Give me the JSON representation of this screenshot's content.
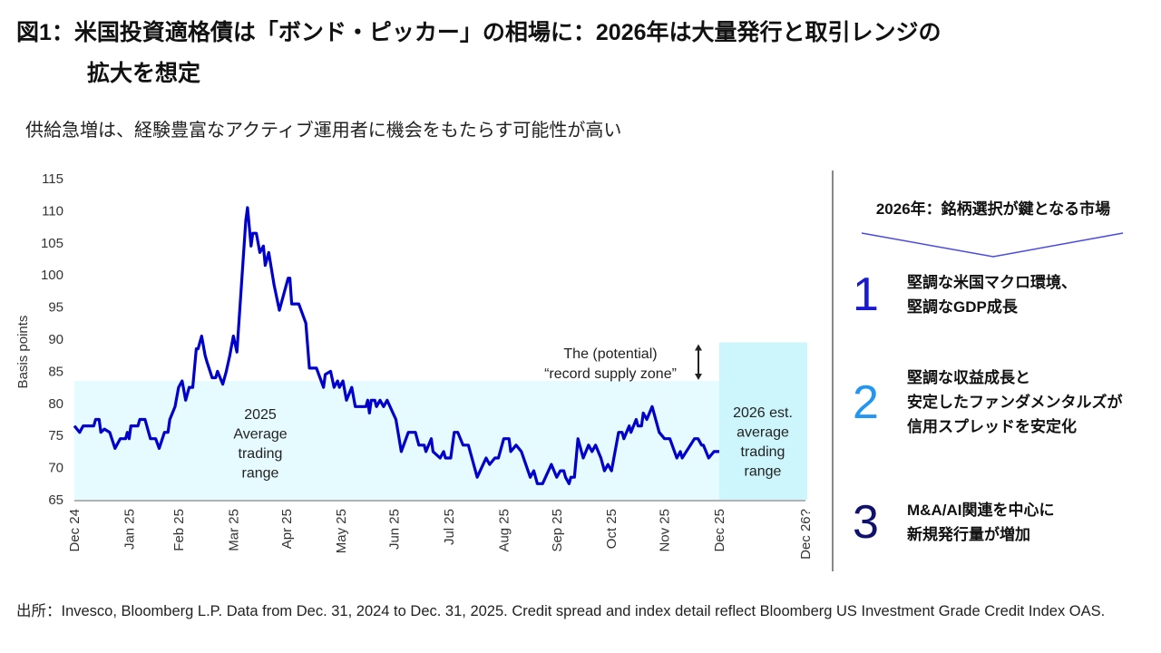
{
  "header": {
    "title_line1": "図1：米国投資適格債は「ボンド・ピッカー」の相場に：2026年は大量発行と取引レンジの",
    "title_line2": "拡大を想定",
    "subtitle": "供給急増は、経験豊富なアクティブ運用者に機会をもたらす可能性が高い"
  },
  "chart_data": {
    "type": "line",
    "ylabel": "Basis points",
    "ylim": [
      65,
      115
    ],
    "yticks": [
      65,
      70,
      75,
      80,
      85,
      90,
      95,
      100,
      105,
      110,
      115
    ],
    "xticks": [
      {
        "date": "2024-12-31",
        "label": "Dec 24"
      },
      {
        "date": "2025-01-31",
        "label": "Jan 25"
      },
      {
        "date": "2025-02-28",
        "label": "Feb 25"
      },
      {
        "date": "2025-03-31",
        "label": "Mar 25"
      },
      {
        "date": "2025-04-30",
        "label": "Apr 25"
      },
      {
        "date": "2025-05-31",
        "label": "May 25"
      },
      {
        "date": "2025-06-30",
        "label": "Jun 25"
      },
      {
        "date": "2025-07-31",
        "label": "Jul 25"
      },
      {
        "date": "2025-08-31",
        "label": "Aug 25"
      },
      {
        "date": "2025-09-30",
        "label": "Sep 25"
      },
      {
        "date": "2025-10-31",
        "label": "Oct 25"
      },
      {
        "date": "2025-11-30",
        "label": "Nov 25"
      },
      {
        "date": "2025-12-31",
        "label": "Dec 25"
      },
      {
        "date": "2026-12-31",
        "label": "Dec 26?"
      }
    ],
    "grid": false,
    "line_color": "#0000cc",
    "band_color_2025": "#e6fbff",
    "band_color_2026": "#ccf5fc",
    "bands": [
      {
        "from": "2024-12-31",
        "to": "2025-12-31",
        "low": 65,
        "high": 83.5,
        "label_lines": [
          "2025",
          "Average",
          "trading",
          "range"
        ]
      },
      {
        "from": "2025-12-31",
        "to": "2026-12-31",
        "low": 65,
        "high": 89.5,
        "label_lines": [
          "2026 est.",
          "average",
          "trading",
          "range"
        ]
      }
    ],
    "annotation": {
      "lines": [
        "The (potential)",
        "“record supply zone”"
      ],
      "from": 83.5,
      "to": 89.5
    },
    "series": [
      {
        "points": [
          [
            "2024-12-31",
            76.5
          ],
          [
            "2025-01-03",
            75.5
          ],
          [
            "2025-01-05",
            76.5
          ],
          [
            "2025-01-11",
            76.5
          ],
          [
            "2025-01-12",
            77.5
          ],
          [
            "2025-01-14",
            77.5
          ],
          [
            "2025-01-15",
            75.5
          ],
          [
            "2025-01-17",
            76
          ],
          [
            "2025-01-20",
            75.5
          ],
          [
            "2025-01-23",
            73
          ],
          [
            "2025-01-26",
            74.5
          ],
          [
            "2025-01-29",
            74.5
          ],
          [
            "2025-01-30",
            75.5
          ],
          [
            "2025-01-31",
            74.5
          ],
          [
            "2025-02-01",
            76.5
          ],
          [
            "2025-02-05",
            76.5
          ],
          [
            "2025-02-06",
            77.5
          ],
          [
            "2025-02-09",
            77.5
          ],
          [
            "2025-02-12",
            74.5
          ],
          [
            "2025-02-15",
            74.5
          ],
          [
            "2025-02-17",
            73
          ],
          [
            "2025-02-20",
            75.5
          ],
          [
            "2025-02-22",
            75.5
          ],
          [
            "2025-02-23",
            77.5
          ],
          [
            "2025-02-26",
            79.5
          ],
          [
            "2025-02-28",
            82.5
          ],
          [
            "2025-03-02",
            83.5
          ],
          [
            "2025-03-04",
            80.5
          ],
          [
            "2025-03-06",
            82.5
          ],
          [
            "2025-03-08",
            82.5
          ],
          [
            "2025-03-10",
            88.5
          ],
          [
            "2025-03-11",
            88.5
          ],
          [
            "2025-03-13",
            90.5
          ],
          [
            "2025-03-15",
            87.5
          ],
          [
            "2025-03-16",
            86.5
          ],
          [
            "2025-03-19",
            84
          ],
          [
            "2025-03-21",
            84
          ],
          [
            "2025-03-22",
            85
          ],
          [
            "2025-03-25",
            83
          ],
          [
            "2025-03-27",
            85
          ],
          [
            "2025-03-29",
            87.5
          ],
          [
            "2025-03-31",
            90.5
          ],
          [
            "2025-04-02",
            88
          ],
          [
            "2025-04-07",
            108.5
          ],
          [
            "2025-04-08",
            110.5
          ],
          [
            "2025-04-10",
            104.5
          ],
          [
            "2025-04-11",
            106.5
          ],
          [
            "2025-04-13",
            106.5
          ],
          [
            "2025-04-15",
            103.5
          ],
          [
            "2025-04-17",
            104.5
          ],
          [
            "2025-04-18",
            101.5
          ],
          [
            "2025-04-20",
            103.5
          ],
          [
            "2025-04-23",
            98.5
          ],
          [
            "2025-04-26",
            94.5
          ],
          [
            "2025-05-01",
            99.5
          ],
          [
            "2025-05-02",
            99.5
          ],
          [
            "2025-05-03",
            95.5
          ],
          [
            "2025-05-07",
            95.5
          ],
          [
            "2025-05-11",
            92.5
          ],
          [
            "2025-05-13",
            85.5
          ],
          [
            "2025-05-17",
            85.5
          ],
          [
            "2025-05-21",
            82.5
          ],
          [
            "2025-05-22",
            84.5
          ],
          [
            "2025-05-25",
            85
          ],
          [
            "2025-05-27",
            82.5
          ],
          [
            "2025-05-29",
            83.5
          ],
          [
            "2025-05-30",
            82.5
          ],
          [
            "2025-06-01",
            83.5
          ],
          [
            "2025-06-03",
            80.5
          ],
          [
            "2025-06-06",
            82.5
          ],
          [
            "2025-06-08",
            79.5
          ],
          [
            "2025-06-14",
            79.5
          ],
          [
            "2025-06-15",
            80.5
          ],
          [
            "2025-06-16",
            78.5
          ],
          [
            "2025-06-17",
            80.5
          ],
          [
            "2025-06-19",
            80.5
          ],
          [
            "2025-06-20",
            79.5
          ],
          [
            "2025-06-22",
            80.5
          ],
          [
            "2025-06-24",
            79.5
          ],
          [
            "2025-06-26",
            80.5
          ],
          [
            "2025-07-01",
            77.5
          ],
          [
            "2025-07-04",
            72.5
          ],
          [
            "2025-07-08",
            75.5
          ],
          [
            "2025-07-12",
            75.5
          ],
          [
            "2025-07-14",
            73.5
          ],
          [
            "2025-07-17",
            73.5
          ],
          [
            "2025-07-18",
            72.5
          ],
          [
            "2025-07-21",
            74.5
          ],
          [
            "2025-07-22",
            72.5
          ],
          [
            "2025-07-26",
            71.5
          ],
          [
            "2025-07-28",
            72.5
          ],
          [
            "2025-07-29",
            71.5
          ],
          [
            "2025-08-01",
            71.5
          ],
          [
            "2025-08-03",
            75.5
          ],
          [
            "2025-08-05",
            75.5
          ],
          [
            "2025-08-08",
            73.5
          ],
          [
            "2025-08-11",
            73.5
          ],
          [
            "2025-08-16",
            68.5
          ],
          [
            "2025-08-21",
            71.5
          ],
          [
            "2025-08-23",
            70.5
          ],
          [
            "2025-08-26",
            71.5
          ],
          [
            "2025-08-28",
            71.5
          ],
          [
            "2025-08-31",
            74.5
          ],
          [
            "2025-09-03",
            74.5
          ],
          [
            "2025-09-04",
            72.5
          ],
          [
            "2025-09-07",
            73.5
          ],
          [
            "2025-09-10",
            72.5
          ],
          [
            "2025-09-15",
            68.5
          ],
          [
            "2025-09-17",
            69.5
          ],
          [
            "2025-09-19",
            67.5
          ],
          [
            "2025-09-22",
            67.5
          ],
          [
            "2025-09-27",
            70.5
          ],
          [
            "2025-09-30",
            68.5
          ],
          [
            "2025-10-02",
            69.5
          ],
          [
            "2025-10-04",
            69.5
          ],
          [
            "2025-10-05",
            68.5
          ],
          [
            "2025-10-07",
            67.5
          ],
          [
            "2025-10-08",
            68.5
          ],
          [
            "2025-10-10",
            68.5
          ],
          [
            "2025-10-12",
            74.5
          ],
          [
            "2025-10-15",
            71.5
          ],
          [
            "2025-10-18",
            73.5
          ],
          [
            "2025-10-20",
            72.5
          ],
          [
            "2025-10-22",
            73.5
          ],
          [
            "2025-10-25",
            71.5
          ],
          [
            "2025-10-27",
            69.5
          ],
          [
            "2025-10-29",
            70.5
          ],
          [
            "2025-10-31",
            69.5
          ],
          [
            "2025-11-04",
            75.5
          ],
          [
            "2025-11-06",
            75.5
          ],
          [
            "2025-11-07",
            74.5
          ],
          [
            "2025-11-10",
            76.5
          ],
          [
            "2025-11-11",
            75.5
          ],
          [
            "2025-11-14",
            77.5
          ],
          [
            "2025-11-15",
            76.5
          ],
          [
            "2025-11-17",
            76.5
          ],
          [
            "2025-11-18",
            78.5
          ],
          [
            "2025-11-20",
            77.5
          ],
          [
            "2025-11-23",
            79.5
          ],
          [
            "2025-11-27",
            75.5
          ],
          [
            "2025-11-30",
            74.5
          ],
          [
            "2025-12-03",
            74.5
          ],
          [
            "2025-12-07",
            71.5
          ],
          [
            "2025-12-09",
            72.5
          ],
          [
            "2025-12-10",
            71.5
          ],
          [
            "2025-12-17",
            74.5
          ],
          [
            "2025-12-19",
            74.5
          ],
          [
            "2025-12-21",
            73.5
          ],
          [
            "2025-12-22",
            73.5
          ],
          [
            "2025-12-25",
            71.5
          ],
          [
            "2025-12-28",
            72.5
          ],
          [
            "2025-12-31",
            72.5
          ]
        ]
      }
    ]
  },
  "right_panel": {
    "title": "2026年：銘柄選択が鍵となる市場",
    "connector_color": "#4a4ae0",
    "items": [
      {
        "number": "1",
        "color": "#1a1ad0",
        "text": "堅調な米国マクロ環境、\n堅調なGDP成長"
      },
      {
        "number": "2",
        "color": "#2196f3",
        "text": "堅調な収益成長と\n安定したファンダメンタルズが\n信用スプレッドを安定化"
      },
      {
        "number": "3",
        "color": "#10106e",
        "text": "M&A/AI関連を中心に\n新規発行量が増加"
      }
    ]
  },
  "footnote": "出所：Invesco, Bloomberg L.P. Data from Dec. 31, 2024 to Dec. 31, 2025. Credit spread and index detail reflect Bloomberg US Investment Grade Credit Index OAS."
}
